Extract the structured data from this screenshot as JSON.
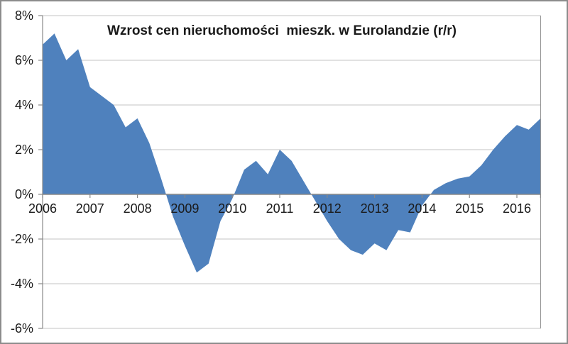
{
  "title": "Wzrost cen nieruchomości  mieszk. w Eurolandzie (r/r)",
  "colors": {
    "area": "#4f81bd",
    "gridline": "#c3c3c3",
    "axis": "#898989",
    "text": "#1a1a1a",
    "chart_border": "#8c8c8c",
    "background": "#ffffff"
  },
  "chart_data": {
    "type": "area",
    "title": "Wzrost cen nieruchomości  mieszk. w Eurolandzie (r/r)",
    "xlabel": "",
    "ylabel": "",
    "ylim": [
      -6,
      8
    ],
    "xlim": [
      2006.0,
      2016.5
    ],
    "grid": true,
    "legend": false,
    "y_ticks": [
      {
        "value": 8,
        "label": "8%"
      },
      {
        "value": 6,
        "label": "6%"
      },
      {
        "value": 4,
        "label": "4%"
      },
      {
        "value": 2,
        "label": "2%"
      },
      {
        "value": 0,
        "label": "0%"
      },
      {
        "value": -2,
        "label": "-2%"
      },
      {
        "value": -4,
        "label": "-4%"
      },
      {
        "value": -6,
        "label": "-6%"
      }
    ],
    "x_ticks": [
      {
        "value": 2006,
        "label": "2006"
      },
      {
        "value": 2007,
        "label": "2007"
      },
      {
        "value": 2008,
        "label": "2008"
      },
      {
        "value": 2009,
        "label": "2009"
      },
      {
        "value": 2010,
        "label": "2010"
      },
      {
        "value": 2011,
        "label": "2011"
      },
      {
        "value": 2012,
        "label": "2012"
      },
      {
        "value": 2013,
        "label": "2013"
      },
      {
        "value": 2014,
        "label": "2014"
      },
      {
        "value": 2015,
        "label": "2015"
      },
      {
        "value": 2016,
        "label": "2016"
      }
    ],
    "series": [
      {
        "name": "Wzrost cen nieruchomości mieszk. w Eurolandzie (r/r)",
        "frequency": "quarterly",
        "unit": "%",
        "x": [
          2006.0,
          2006.25,
          2006.5,
          2006.75,
          2007.0,
          2007.25,
          2007.5,
          2007.75,
          2008.0,
          2008.25,
          2008.5,
          2008.75,
          2009.0,
          2009.25,
          2009.5,
          2009.75,
          2010.0,
          2010.25,
          2010.5,
          2010.75,
          2011.0,
          2011.25,
          2011.5,
          2011.75,
          2012.0,
          2012.25,
          2012.5,
          2012.75,
          2013.0,
          2013.25,
          2013.5,
          2013.75,
          2014.0,
          2014.25,
          2014.5,
          2014.75,
          2015.0,
          2015.25,
          2015.5,
          2015.75,
          2016.0,
          2016.25,
          2016.5
        ],
        "values": [
          6.7,
          7.2,
          6.0,
          6.5,
          4.8,
          4.4,
          4.0,
          3.0,
          3.4,
          2.3,
          0.7,
          -1.0,
          -2.3,
          -3.5,
          -3.1,
          -1.2,
          -0.2,
          1.1,
          1.5,
          0.9,
          2.0,
          1.5,
          0.6,
          -0.3,
          -1.2,
          -2.0,
          -2.5,
          -2.7,
          -2.2,
          -2.5,
          -1.6,
          -1.7,
          -0.5,
          0.2,
          0.5,
          0.7,
          0.8,
          1.3,
          2.0,
          2.6,
          3.1,
          2.9,
          3.4
        ]
      }
    ]
  }
}
